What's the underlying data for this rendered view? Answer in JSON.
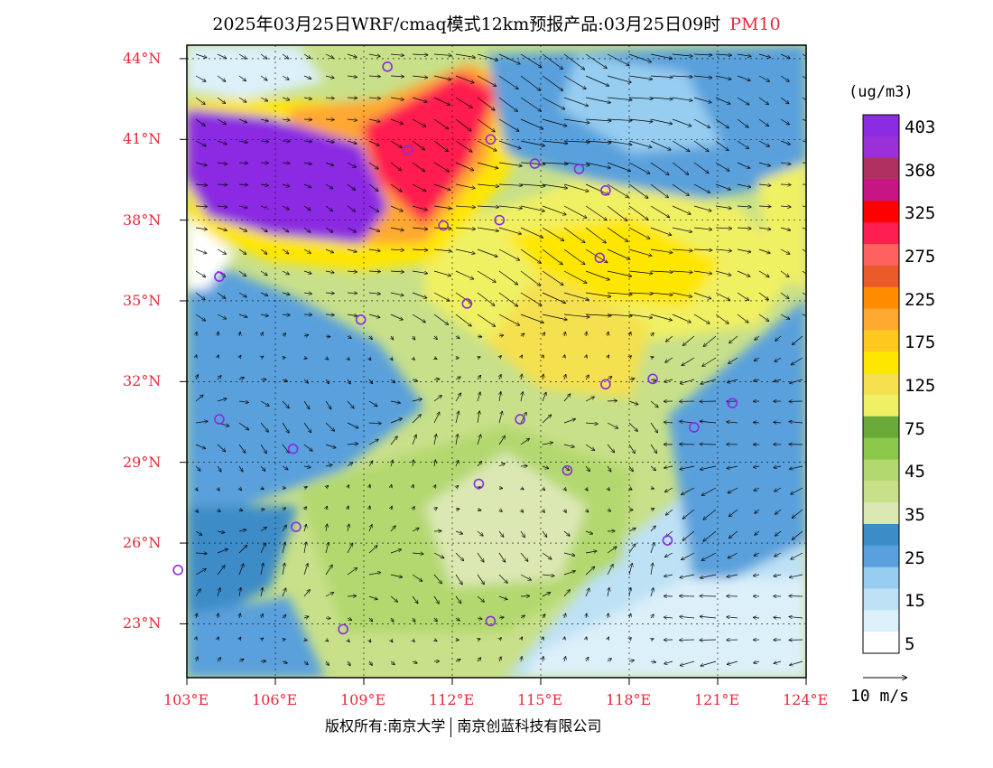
{
  "title": {
    "main": "2025年03月25日WRF/cmaq模式12km预报产品:03月25日09时",
    "pollutant": "PM10"
  },
  "map": {
    "lat_labels": [
      "44°N",
      "41°N",
      "38°N",
      "35°N",
      "32°N",
      "29°N",
      "26°N",
      "23°N"
    ],
    "lon_labels": [
      "103°E",
      "106°E",
      "109°E",
      "112°E",
      "115°E",
      "118°E",
      "121°E",
      "124°E"
    ],
    "lat_range": [
      21,
      44.5
    ],
    "lon_range": [
      103,
      124
    ]
  },
  "colorbar": {
    "unit": "(ug/m3)",
    "labels": [
      "403",
      "368",
      "325",
      "275",
      "225",
      "175",
      "125",
      "75",
      "45",
      "35",
      "25",
      "15",
      "5"
    ],
    "colors": [
      "#8b2be2",
      "#9b30d9",
      "#b03060",
      "#c71585",
      "#ff0000",
      "#ff1e50",
      "#ff6060",
      "#ea5a2a",
      "#ff8c00",
      "#ffa830",
      "#ffc820",
      "#ffe600",
      "#f5e050",
      "#f0f064",
      "#6aaa3a",
      "#8cc84b",
      "#b4d870",
      "#c8e08a",
      "#dce8b4",
      "#3c8cc8",
      "#5aa0dc",
      "#96cdf0",
      "#bee1f5",
      "#dcf0fa",
      "#ffffff"
    ]
  },
  "vector_reference": {
    "label": "10 m/s"
  },
  "copyright": {
    "left": "版权所有:南京大学",
    "right": "南京创蓝科技有限公司"
  }
}
